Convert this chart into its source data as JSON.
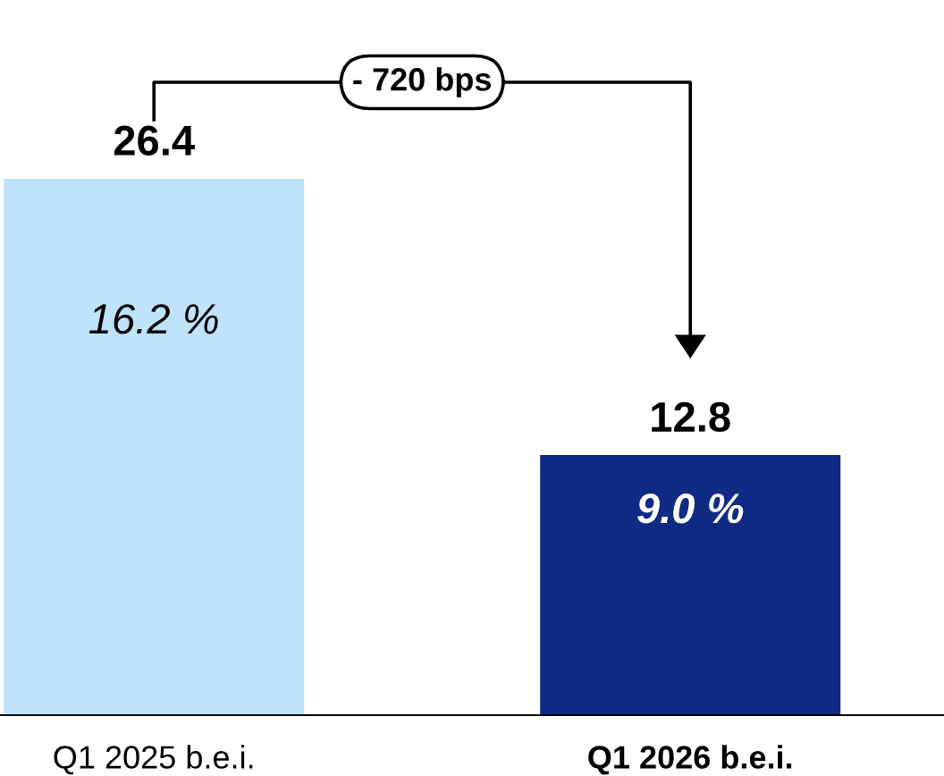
{
  "chart_data": {
    "type": "bar",
    "categories": [
      "Q1 2025 b.e.i.",
      "Q1 2026 b.e.i."
    ],
    "values": [
      26.4,
      12.8
    ],
    "colors": [
      "#bfe3fb",
      "#0f2a84"
    ],
    "data_labels": true,
    "annotations": [
      "16.2 %",
      "9.0 %",
      "- 720 bps"
    ],
    "grid": false,
    "legend": false
  }
}
